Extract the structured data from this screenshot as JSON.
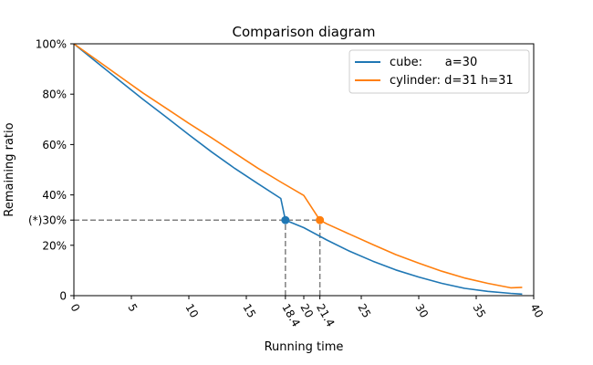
{
  "chart_data": {
    "type": "line",
    "title": "Comparison diagram",
    "xlabel": "Running time",
    "ylabel": "Remaining ratio",
    "xlim": [
      0,
      40
    ],
    "ylim": [
      0,
      1
    ],
    "x_ticks": [
      {
        "value": 0,
        "label": "0"
      },
      {
        "value": 5,
        "label": "5"
      },
      {
        "value": 10,
        "label": "10"
      },
      {
        "value": 15,
        "label": "15"
      },
      {
        "value": 18.4,
        "label": "18.4"
      },
      {
        "value": 20,
        "label": "20"
      },
      {
        "value": 21.4,
        "label": "21.4"
      },
      {
        "value": 25,
        "label": "25"
      },
      {
        "value": 30,
        "label": "30"
      },
      {
        "value": 35,
        "label": "35"
      },
      {
        "value": 40,
        "label": "40"
      }
    ],
    "y_ticks": [
      {
        "value": 0,
        "label": "0"
      },
      {
        "value": 0.2,
        "label": "20%"
      },
      {
        "value": 0.3,
        "label": "(*)30%"
      },
      {
        "value": 0.4,
        "label": "40%"
      },
      {
        "value": 0.6,
        "label": "60%"
      },
      {
        "value": 0.8,
        "label": "80%"
      },
      {
        "value": 1.0,
        "label": "100%"
      }
    ],
    "grid": false,
    "legend_position": "top-right",
    "series": [
      {
        "name": "cube:      a=30",
        "color": "#1f77b4",
        "x": [
          0,
          2,
          4,
          6,
          8,
          10,
          12,
          14,
          16,
          18,
          18.4,
          20,
          22,
          24,
          26,
          28,
          30,
          32,
          34,
          36,
          38,
          39
        ],
        "y": [
          1.0,
          0.926,
          0.853,
          0.78,
          0.71,
          0.639,
          0.57,
          0.505,
          0.445,
          0.386,
          0.3,
          0.27,
          0.221,
          0.176,
          0.137,
          0.102,
          0.074,
          0.049,
          0.029,
          0.017,
          0.009,
          0.006
        ]
      },
      {
        "name": "cylinder: d=31 h=31",
        "color": "#ff7f0e",
        "x": [
          0,
          2,
          4,
          6,
          8,
          10,
          12,
          14,
          16,
          18,
          20,
          21.4,
          22,
          24,
          26,
          28,
          30,
          32,
          34,
          36,
          38,
          39
        ],
        "y": [
          1.0,
          0.935,
          0.87,
          0.805,
          0.745,
          0.684,
          0.626,
          0.566,
          0.506,
          0.451,
          0.398,
          0.3,
          0.285,
          0.244,
          0.203,
          0.163,
          0.129,
          0.097,
          0.07,
          0.049,
          0.031,
          0.033
        ]
      }
    ],
    "markers": [
      {
        "series": "cube:      a=30",
        "x": 18.4,
        "y": 0.3,
        "color": "#1f77b4"
      },
      {
        "series": "cylinder: d=31 h=31",
        "x": 21.4,
        "y": 0.3,
        "color": "#ff7f0e"
      }
    ],
    "reference_lines": [
      {
        "kind": "horizontal",
        "y": 0.3,
        "from_x": 0,
        "to_x": 21.4,
        "style": "dashed",
        "color": "#808080"
      },
      {
        "kind": "vertical",
        "x": 18.4,
        "from_y": 0,
        "to_y": 0.3,
        "style": "dashed",
        "color": "#808080"
      },
      {
        "kind": "vertical",
        "x": 21.4,
        "from_y": 0,
        "to_y": 0.3,
        "style": "dashed",
        "color": "#808080"
      }
    ]
  }
}
